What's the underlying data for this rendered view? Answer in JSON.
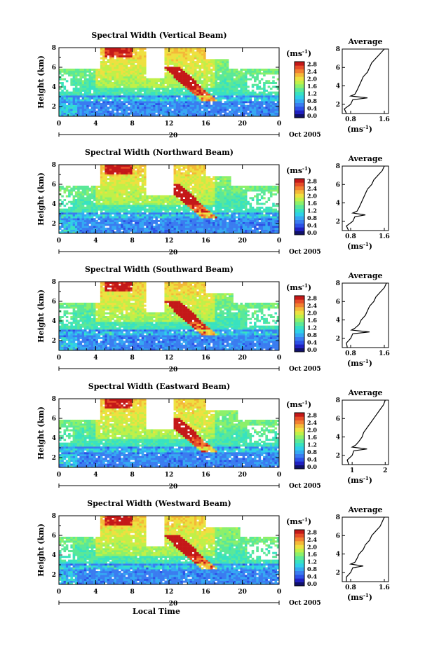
{
  "figure": {
    "xlabel": "Local Time",
    "date_label": "Oct 2005",
    "day_label": "20",
    "units_label": "(ms",
    "units_exp": "-1",
    "colormap": [
      "#10106a",
      "#2020c0",
      "#2c50e6",
      "#3a7cf0",
      "#35a8f2",
      "#2fd0e8",
      "#38e2c0",
      "#5ae898",
      "#8cf06a",
      "#c0f048",
      "#eee040",
      "#f4b838",
      "#f28030",
      "#e64c28",
      "#c41818"
    ]
  },
  "chart_data": [
    {
      "type": "heatmap",
      "title": "Spectral Width (Vertical Beam)",
      "ylabel": "Height (km)",
      "x_ticks": [
        "0",
        "4",
        "8",
        "12",
        "16",
        "20",
        "0"
      ],
      "y_ticks": [
        "2",
        "4",
        "6",
        "8"
      ],
      "xlim": [
        0,
        24
      ],
      "ylim": [
        1,
        8
      ],
      "colorbar_ticks": [
        "0.0",
        "0.4",
        "0.8",
        "1.2",
        "1.6",
        "2.0",
        "2.4",
        "2.8"
      ],
      "average": {
        "title": "Average",
        "xlabel": "(ms",
        "xlabel_exp": "-1",
        "x_ticks": [
          "0.8",
          "1.6"
        ],
        "y_ticks": [
          "2",
          "4",
          "6",
          "8"
        ],
        "xlim": [
          0.6,
          1.7
        ],
        "height": [
          1.0,
          1.5,
          2.0,
          2.5,
          2.7,
          2.9,
          3.1,
          3.5,
          4.0,
          4.5,
          5.0,
          5.5,
          6.0,
          6.5,
          7.0,
          7.5,
          8.0
        ],
        "value": [
          0.7,
          0.65,
          0.8,
          0.85,
          1.2,
          0.8,
          0.9,
          0.95,
          1.0,
          1.05,
          1.1,
          1.2,
          1.25,
          1.3,
          1.4,
          1.5,
          1.6
        ]
      }
    },
    {
      "type": "heatmap",
      "title": "Spectral Width (Northward Beam)",
      "ylabel": "Height (km)",
      "x_ticks": [
        "0",
        "4",
        "8",
        "12",
        "16",
        "20",
        "0"
      ],
      "y_ticks": [
        "2",
        "4",
        "6",
        "8"
      ],
      "xlim": [
        0,
        24
      ],
      "ylim": [
        1,
        8
      ],
      "colorbar_ticks": [
        "0.0",
        "0.4",
        "0.8",
        "1.2",
        "1.6",
        "2.0",
        "2.4",
        "2.8"
      ],
      "average": {
        "title": "Average",
        "xlabel": "(ms",
        "xlabel_exp": "-1",
        "x_ticks": [
          "0.8",
          "1.6"
        ],
        "y_ticks": [
          "2",
          "4",
          "6",
          "8"
        ],
        "xlim": [
          0.6,
          1.7
        ],
        "height": [
          1.0,
          1.5,
          2.0,
          2.5,
          2.7,
          2.9,
          3.1,
          3.5,
          4.0,
          4.5,
          5.0,
          5.5,
          6.0,
          6.5,
          7.0,
          7.5,
          8.0
        ],
        "value": [
          0.75,
          0.7,
          0.85,
          0.9,
          1.15,
          0.85,
          0.95,
          1.0,
          1.05,
          1.1,
          1.15,
          1.2,
          1.3,
          1.35,
          1.45,
          1.55,
          1.6
        ]
      }
    },
    {
      "type": "heatmap",
      "title": "Spectral Width (Southward Beam)",
      "ylabel": "Height (km)",
      "x_ticks": [
        "0",
        "4",
        "8",
        "12",
        "16",
        "20",
        "0"
      ],
      "y_ticks": [
        "2",
        "4",
        "6",
        "8"
      ],
      "xlim": [
        0,
        24
      ],
      "ylim": [
        1,
        8
      ],
      "colorbar_ticks": [
        "0.0",
        "0.4",
        "0.8",
        "1.2",
        "1.6",
        "2.0",
        "2.4",
        "2.8"
      ],
      "average": {
        "title": "Average",
        "xlabel": "(ms",
        "xlabel_exp": "-1",
        "x_ticks": [
          "0.8",
          "1.6"
        ],
        "y_ticks": [
          "2",
          "4",
          "6",
          "8"
        ],
        "xlim": [
          0.6,
          1.7
        ],
        "height": [
          1.0,
          1.5,
          2.0,
          2.5,
          2.7,
          2.9,
          3.1,
          3.5,
          4.0,
          4.5,
          5.0,
          5.5,
          6.0,
          6.5,
          7.0,
          7.5,
          8.0
        ],
        "value": [
          0.72,
          0.7,
          0.8,
          0.85,
          1.25,
          0.82,
          0.9,
          1.0,
          1.05,
          1.15,
          1.2,
          1.25,
          1.35,
          1.4,
          1.5,
          1.6,
          1.65
        ]
      }
    },
    {
      "type": "heatmap",
      "title": "Spectral Width (Eastward Beam)",
      "ylabel": "Height (km)",
      "x_ticks": [
        "0",
        "4",
        "8",
        "12",
        "16",
        "20",
        "0"
      ],
      "y_ticks": [
        "2",
        "4",
        "6",
        "8"
      ],
      "xlim": [
        0,
        24
      ],
      "ylim": [
        1,
        8
      ],
      "colorbar_ticks": [
        "0.0",
        "0.4",
        "0.8",
        "1.2",
        "1.6",
        "2.0",
        "2.4",
        "2.8"
      ],
      "average": {
        "title": "Average",
        "xlabel": "(ms",
        "xlabel_exp": "-1",
        "x_ticks": [
          "1",
          "2"
        ],
        "y_ticks": [
          "2",
          "4",
          "6",
          "8"
        ],
        "xlim": [
          0.7,
          2.1
        ],
        "height": [
          1.0,
          1.5,
          2.0,
          2.5,
          2.7,
          2.9,
          3.1,
          3.5,
          4.0,
          4.5,
          5.0,
          5.5,
          6.0,
          6.5,
          7.0,
          7.5,
          8.0
        ],
        "value": [
          0.9,
          0.85,
          1.0,
          1.05,
          1.45,
          1.0,
          1.1,
          1.2,
          1.3,
          1.35,
          1.45,
          1.55,
          1.65,
          1.75,
          1.85,
          1.95,
          2.0
        ]
      }
    },
    {
      "type": "heatmap",
      "title": "Spectral Width (Westward Beam)",
      "ylabel": "Height (km)",
      "x_ticks": [
        "0",
        "4",
        "8",
        "12",
        "16",
        "20",
        "0"
      ],
      "y_ticks": [
        "2",
        "4",
        "6",
        "8"
      ],
      "xlim": [
        0,
        24
      ],
      "ylim": [
        1,
        8
      ],
      "colorbar_ticks": [
        "0.0",
        "0.4",
        "0.8",
        "1.2",
        "1.6",
        "2.0",
        "2.4",
        "2.8"
      ],
      "average": {
        "title": "Average",
        "xlabel": "(ms",
        "xlabel_exp": "-1",
        "x_ticks": [
          "0.8",
          "1.6"
        ],
        "y_ticks": [
          "2",
          "4",
          "6",
          "8"
        ],
        "xlim": [
          0.6,
          1.7
        ],
        "height": [
          1.0,
          1.5,
          2.0,
          2.5,
          2.7,
          2.9,
          3.1,
          3.5,
          4.0,
          4.5,
          5.0,
          5.5,
          6.0,
          6.5,
          7.0,
          7.5,
          8.0
        ],
        "value": [
          0.7,
          0.7,
          0.8,
          0.85,
          1.1,
          0.8,
          0.9,
          0.95,
          1.0,
          1.1,
          1.15,
          1.25,
          1.3,
          1.4,
          1.5,
          1.55,
          1.6
        ]
      }
    }
  ]
}
